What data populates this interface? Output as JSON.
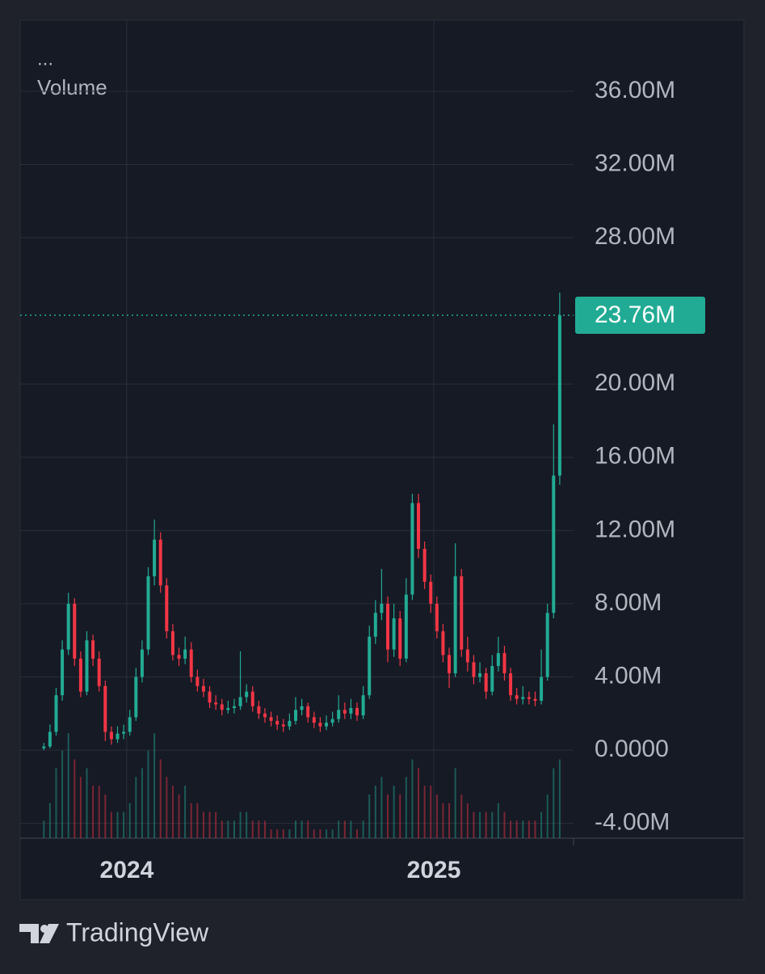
{
  "chart_data": {
    "type": "candlestick",
    "menu": "...",
    "title": "Volume",
    "x": [
      2023.73,
      2023.75,
      2023.77,
      2023.79,
      2023.81,
      2023.83,
      2023.85,
      2023.87,
      2023.89,
      2023.91,
      2023.93,
      2023.95,
      2023.97,
      2023.99,
      2024.01,
      2024.03,
      2024.05,
      2024.07,
      2024.09,
      2024.11,
      2024.13,
      2024.15,
      2024.17,
      2024.19,
      2024.21,
      2024.23,
      2024.25,
      2024.27,
      2024.29,
      2024.31,
      2024.33,
      2024.35,
      2024.37,
      2024.39,
      2024.41,
      2024.43,
      2024.45,
      2024.47,
      2024.49,
      2024.51,
      2024.53,
      2024.55,
      2024.57,
      2024.59,
      2024.61,
      2024.63,
      2024.65,
      2024.67,
      2024.69,
      2024.71,
      2024.73,
      2024.75,
      2024.77,
      2024.79,
      2024.81,
      2024.83,
      2024.85,
      2024.87,
      2024.89,
      2024.91,
      2024.93,
      2024.95,
      2024.97,
      2024.99,
      2025.01,
      2025.03,
      2025.05,
      2025.07,
      2025.09,
      2025.11,
      2025.13,
      2025.15,
      2025.17,
      2025.19,
      2025.21,
      2025.23,
      2025.25,
      2025.27,
      2025.29,
      2025.31,
      2025.33,
      2025.35,
      2025.37,
      2025.39,
      2025.41
    ],
    "open": [
      0.1,
      0.2,
      1.0,
      3.0,
      5.5,
      8.0,
      5.0,
      3.2,
      6.0,
      5.0,
      3.5,
      1.0,
      0.6,
      0.9,
      1.0,
      1.8,
      4.0,
      5.5,
      9.5,
      11.5,
      9.0,
      6.5,
      5.2,
      5.0,
      5.5,
      4.0,
      3.5,
      3.2,
      2.6,
      2.5,
      2.2,
      2.3,
      2.4,
      2.9,
      3.2,
      2.4,
      2.0,
      1.8,
      1.6,
      1.4,
      1.3,
      1.6,
      2.2,
      2.4,
      1.8,
      1.5,
      1.3,
      1.5,
      1.7,
      2.2,
      2.0,
      2.3,
      1.9,
      3.0,
      6.2,
      7.5,
      8.0,
      5.5,
      7.2,
      5.0,
      8.5,
      13.5,
      11.0,
      9.2,
      8.0,
      6.5,
      5.2,
      4.2,
      9.5,
      5.5,
      4.8,
      4.0,
      4.2,
      3.2,
      4.6,
      5.3,
      4.2,
      3.0,
      2.8,
      2.9,
      2.8,
      2.7,
      4.0,
      7.5,
      15.0
    ],
    "high": [
      0.4,
      1.4,
      3.4,
      6.0,
      8.6,
      8.3,
      5.4,
      6.5,
      6.3,
      5.4,
      3.8,
      1.3,
      1.3,
      1.4,
      2.2,
      4.5,
      6.0,
      10.0,
      12.6,
      11.9,
      9.4,
      6.9,
      5.6,
      6.2,
      5.9,
      4.4,
      3.9,
      3.5,
      3.0,
      2.8,
      2.7,
      2.8,
      5.4,
      3.6,
      3.5,
      2.7,
      2.3,
      2.1,
      1.9,
      1.7,
      2.0,
      2.9,
      2.8,
      2.6,
      2.1,
      1.8,
      1.9,
      2.1,
      3.0,
      2.6,
      2.8,
      2.6,
      3.5,
      6.8,
      8.2,
      9.9,
      8.4,
      8.0,
      7.6,
      9.4,
      14.0,
      14.0,
      11.4,
      9.6,
      8.4,
      6.9,
      5.6,
      11.3,
      9.9,
      6.2,
      5.2,
      4.8,
      4.5,
      5.2,
      6.2,
      5.7,
      4.5,
      3.4,
      3.5,
      3.2,
      3.2,
      5.5,
      8.0,
      17.8,
      25.0
    ],
    "low": [
      0,
      0.1,
      0.8,
      2.7,
      5.2,
      4.6,
      2.9,
      3.0,
      4.6,
      3.2,
      0.5,
      0.3,
      0.4,
      0.6,
      0.8,
      1.6,
      3.7,
      5.2,
      9.0,
      8.6,
      6.1,
      4.9,
      4.6,
      4.7,
      3.7,
      3.2,
      2.9,
      2.3,
      2.2,
      1.9,
      2.0,
      2.0,
      2.2,
      2.6,
      2.1,
      1.7,
      1.5,
      1.3,
      1.1,
      1.0,
      1.1,
      1.4,
      1.9,
      1.5,
      1.2,
      1.0,
      1.1,
      1.3,
      1.5,
      1.7,
      1.7,
      1.6,
      1.7,
      2.8,
      5.8,
      7.1,
      4.8,
      5.1,
      4.6,
      4.8,
      8.2,
      10.5,
      8.8,
      7.5,
      6.1,
      4.8,
      3.4,
      4.0,
      5.1,
      4.3,
      3.6,
      3.7,
      2.8,
      3.0,
      4.3,
      3.8,
      2.7,
      2.5,
      2.5,
      2.5,
      2.4,
      2.5,
      3.8,
      7.2,
      14.5
    ],
    "close": [
      0.2,
      1.0,
      3.0,
      5.5,
      8.0,
      5.0,
      3.2,
      6.0,
      5.0,
      3.5,
      1.0,
      0.6,
      0.9,
      1.0,
      1.8,
      4.0,
      5.5,
      9.5,
      11.5,
      9.0,
      6.5,
      5.2,
      5.0,
      5.5,
      4.0,
      3.5,
      3.2,
      2.6,
      2.5,
      2.2,
      2.3,
      2.4,
      2.9,
      3.2,
      2.4,
      2.0,
      1.8,
      1.6,
      1.4,
      1.3,
      1.6,
      2.2,
      2.4,
      1.8,
      1.5,
      1.3,
      1.5,
      1.7,
      2.2,
      2.0,
      2.3,
      1.9,
      3.0,
      6.2,
      7.5,
      8.0,
      5.5,
      7.2,
      5.0,
      8.5,
      13.5,
      11.0,
      9.2,
      8.0,
      6.5,
      5.2,
      4.2,
      9.5,
      5.5,
      4.8,
      4.0,
      4.2,
      3.2,
      4.6,
      5.3,
      4.2,
      3.0,
      2.8,
      2.9,
      2.8,
      2.7,
      4.0,
      7.5,
      15.0,
      23.76
    ],
    "volume": [
      2,
      4,
      8,
      10,
      12,
      9,
      7,
      8,
      6,
      6,
      5,
      3,
      3,
      3,
      4,
      7,
      8,
      10,
      12,
      9,
      7,
      6,
      5,
      6,
      4,
      4,
      3,
      3,
      3,
      2,
      2,
      2,
      3,
      3,
      2,
      2,
      2,
      1,
      1,
      1,
      1,
      2,
      2,
      2,
      1,
      1,
      1,
      1,
      2,
      2,
      2,
      1,
      2,
      5,
      6,
      7,
      5,
      6,
      5,
      7,
      9,
      8,
      6,
      6,
      5,
      4,
      4,
      8,
      5,
      4,
      3,
      3,
      3,
      3,
      4,
      3,
      2,
      2,
      2,
      2,
      2,
      3,
      5,
      8,
      9
    ],
    "up_color": "#22ab94",
    "down_color": "#f23645",
    "xlim": [
      2023.653,
      2025.455
    ],
    "xticks": [
      2024,
      2025
    ],
    "ylim": [
      -4.81,
      39.88
    ],
    "yticks": [
      {
        "value": 36,
        "label": "36.00M"
      },
      {
        "value": 32,
        "label": "32.00M"
      },
      {
        "value": 28,
        "label": "28.00M"
      },
      {
        "value": 20,
        "label": "20.00M"
      },
      {
        "value": 16,
        "label": "16.00M"
      },
      {
        "value": 12,
        "label": "12.00M"
      },
      {
        "value": 8,
        "label": "8.00M"
      },
      {
        "value": 4,
        "label": "4.00M"
      },
      {
        "value": 0,
        "label": "0.0000"
      },
      {
        "value": -4,
        "label": "-4.00M"
      }
    ],
    "last_label": "23.76M",
    "grid": true
  },
  "footer": {
    "brand": "TradingView"
  }
}
